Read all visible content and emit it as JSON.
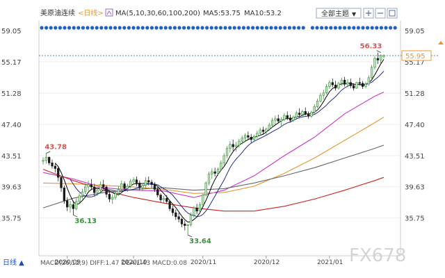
{
  "header": {
    "symbol": "美原油连续",
    "period": "<日线>",
    "ma_params": "MA(5,10,30,60,100,200)",
    "ma5": "MA5:53.75",
    "ma10": "MA10:53.2",
    "theme": "全部主题",
    "theme_arrow": "▼"
  },
  "footer": {
    "period": "日线 ▲",
    "indicator": "MACD(26,12,9) DIFF:1.47 DEA:1.43 MACD:0.08",
    "watermark": "FX678"
  },
  "colors": {
    "up": "#bfe6bf",
    "up_stroke": "#3a8f3a",
    "down": "#1a1a1a",
    "ma5": "#000000",
    "ma10": "#1e2a8a",
    "ma30": "#cc33cc",
    "ma60": "#e89530",
    "ma100": "#666666",
    "ma200": "#cc2222",
    "price_box": "#e89530",
    "ref_line": "#5b86c7"
  },
  "chart_data": {
    "type": "candlestick",
    "y_ticks": [
      "59.05",
      "55.17",
      "51.28",
      "47.40",
      "43.51",
      "39.63",
      "35.75"
    ],
    "ylim": [
      32.6,
      60.1
    ],
    "x_ticks": [
      {
        "label": "2020/09",
        "index": 8
      },
      {
        "label": "2020/10",
        "index": 30
      },
      {
        "label": "2020/11",
        "index": 53
      },
      {
        "label": "2020/12",
        "index": 74
      },
      {
        "label": "2021/01",
        "index": 95
      }
    ],
    "annotations": [
      {
        "label": "43.78",
        "index": 1,
        "value": 43.78
      },
      {
        "label": "36.13",
        "index": 10,
        "value": 36.13
      },
      {
        "label": "33.64",
        "index": 48,
        "value": 33.64
      },
      {
        "label": "56.33",
        "index": 112,
        "value": 56.33
      }
    ],
    "current_price": "55.95",
    "current_price_value": 55.95,
    "reference_value": 55.95,
    "candle_count": 114,
    "ohlc": [
      [
        42.9,
        43.3,
        42.4,
        42.9
      ],
      [
        42.9,
        43.8,
        42.5,
        43.3
      ],
      [
        43.3,
        43.4,
        42.3,
        42.6
      ],
      [
        42.6,
        43.0,
        41.9,
        42.2
      ],
      [
        42.2,
        42.5,
        41.4,
        41.9
      ],
      [
        41.9,
        42.1,
        40.3,
        40.8
      ],
      [
        40.8,
        40.9,
        39.0,
        39.5
      ],
      [
        39.5,
        39.8,
        37.5,
        37.9
      ],
      [
        37.9,
        38.3,
        36.6,
        37.1
      ],
      [
        37.1,
        37.9,
        36.4,
        37.4
      ],
      [
        37.4,
        37.9,
        36.1,
        36.9
      ],
      [
        36.9,
        38.2,
        36.7,
        37.8
      ],
      [
        37.8,
        38.8,
        37.5,
        38.5
      ],
      [
        38.5,
        39.4,
        38.1,
        39.0
      ],
      [
        39.0,
        40.1,
        38.7,
        39.6
      ],
      [
        39.6,
        40.4,
        39.1,
        39.9
      ],
      [
        39.9,
        40.6,
        39.2,
        39.6
      ],
      [
        39.6,
        40.0,
        38.5,
        38.9
      ],
      [
        38.9,
        39.6,
        38.5,
        39.2
      ],
      [
        39.2,
        40.3,
        38.9,
        39.9
      ],
      [
        39.9,
        40.5,
        39.3,
        39.6
      ],
      [
        39.6,
        39.8,
        38.3,
        38.7
      ],
      [
        38.7,
        39.1,
        37.7,
        38.1
      ],
      [
        38.1,
        38.7,
        37.5,
        38.3
      ],
      [
        38.3,
        39.1,
        38.0,
        38.8
      ],
      [
        38.8,
        39.7,
        38.5,
        39.3
      ],
      [
        39.3,
        40.4,
        39.0,
        40.0
      ],
      [
        40.0,
        40.3,
        39.1,
        39.4
      ],
      [
        39.4,
        40.0,
        39.0,
        39.7
      ],
      [
        39.7,
        40.6,
        39.4,
        40.3
      ],
      [
        40.3,
        40.8,
        39.9,
        40.5
      ],
      [
        40.5,
        40.9,
        39.7,
        40.1
      ],
      [
        40.1,
        40.4,
        39.2,
        39.5
      ],
      [
        39.5,
        40.1,
        39.1,
        39.8
      ],
      [
        39.8,
        40.8,
        39.5,
        40.4
      ],
      [
        40.4,
        40.9,
        39.8,
        40.2
      ],
      [
        40.2,
        40.5,
        39.5,
        39.9
      ],
      [
        39.9,
        40.2,
        39.0,
        39.3
      ],
      [
        39.3,
        39.6,
        38.3,
        38.6
      ],
      [
        38.6,
        38.8,
        37.7,
        38.0
      ],
      [
        38.0,
        38.5,
        37.6,
        38.2
      ],
      [
        38.2,
        38.6,
        37.5,
        37.8
      ],
      [
        37.8,
        38.0,
        36.6,
        36.9
      ],
      [
        36.9,
        37.3,
        36.0,
        36.4
      ],
      [
        36.4,
        36.8,
        35.5,
        35.9
      ],
      [
        35.9,
        36.4,
        35.2,
        35.6
      ],
      [
        35.6,
        35.8,
        34.6,
        35.0
      ],
      [
        35.0,
        35.4,
        34.2,
        34.8
      ],
      [
        34.8,
        35.0,
        33.6,
        34.9
      ],
      [
        34.9,
        36.4,
        34.7,
        36.1
      ],
      [
        36.1,
        37.2,
        35.8,
        37.0
      ],
      [
        37.0,
        37.5,
        36.2,
        36.6
      ],
      [
        36.6,
        37.7,
        36.4,
        37.4
      ],
      [
        37.4,
        38.8,
        37.2,
        38.6
      ],
      [
        38.6,
        40.3,
        38.4,
        40.1
      ],
      [
        40.1,
        41.5,
        39.8,
        41.2
      ],
      [
        41.2,
        41.9,
        40.6,
        41.5
      ],
      [
        41.5,
        42.0,
        40.9,
        41.3
      ],
      [
        41.3,
        42.0,
        41.0,
        41.8
      ],
      [
        41.8,
        42.9,
        41.6,
        42.6
      ],
      [
        42.6,
        43.8,
        42.3,
        43.5
      ],
      [
        43.5,
        44.7,
        43.2,
        44.4
      ],
      [
        44.4,
        45.3,
        43.9,
        44.9
      ],
      [
        44.9,
        45.5,
        44.1,
        44.6
      ],
      [
        44.6,
        45.2,
        44.0,
        44.8
      ],
      [
        44.8,
        45.6,
        44.5,
        45.3
      ],
      [
        45.3,
        46.0,
        44.9,
        45.7
      ],
      [
        45.7,
        46.3,
        45.2,
        46.0
      ],
      [
        46.0,
        46.5,
        45.4,
        45.8
      ],
      [
        45.8,
        46.2,
        45.1,
        45.5
      ],
      [
        45.5,
        46.1,
        45.2,
        45.9
      ],
      [
        45.9,
        46.6,
        45.6,
        46.3
      ],
      [
        46.3,
        47.0,
        46.0,
        46.7
      ],
      [
        46.7,
        47.1,
        46.1,
        46.5
      ],
      [
        46.5,
        47.0,
        46.1,
        46.8
      ],
      [
        46.8,
        47.6,
        46.6,
        47.3
      ],
      [
        47.3,
        48.2,
        47.0,
        47.9
      ],
      [
        47.9,
        48.5,
        47.4,
        48.1
      ],
      [
        48.1,
        48.6,
        47.5,
        47.8
      ],
      [
        47.8,
        48.3,
        47.2,
        48.0
      ],
      [
        48.0,
        48.8,
        47.8,
        48.5
      ],
      [
        48.5,
        49.0,
        47.9,
        48.2
      ],
      [
        48.2,
        48.6,
        47.6,
        47.9
      ],
      [
        47.9,
        48.5,
        47.7,
        48.3
      ],
      [
        48.3,
        49.1,
        48.0,
        48.8
      ],
      [
        48.8,
        49.4,
        48.3,
        48.6
      ],
      [
        48.6,
        49.2,
        48.4,
        49.0
      ],
      [
        49.0,
        49.5,
        48.5,
        48.7
      ],
      [
        48.7,
        49.0,
        48.1,
        48.4
      ],
      [
        48.4,
        49.1,
        48.2,
        48.9
      ],
      [
        48.9,
        49.9,
        48.7,
        49.6
      ],
      [
        49.6,
        50.6,
        49.4,
        50.3
      ],
      [
        50.3,
        51.3,
        50.1,
        51.0
      ],
      [
        51.0,
        51.7,
        50.5,
        51.3
      ],
      [
        51.3,
        52.4,
        51.1,
        52.1
      ],
      [
        52.1,
        52.9,
        51.8,
        52.6
      ],
      [
        52.6,
        53.1,
        52.0,
        52.3
      ],
      [
        52.3,
        52.8,
        51.6,
        51.9
      ],
      [
        51.9,
        52.7,
        51.7,
        52.5
      ],
      [
        52.5,
        53.2,
        52.2,
        52.9
      ],
      [
        52.9,
        53.3,
        52.1,
        52.4
      ],
      [
        52.4,
        53.0,
        52.0,
        52.6
      ],
      [
        52.6,
        53.1,
        51.9,
        52.2
      ],
      [
        52.2,
        52.5,
        51.6,
        51.9
      ],
      [
        51.9,
        52.7,
        51.8,
        52.6
      ],
      [
        52.6,
        53.2,
        52.2,
        52.5
      ],
      [
        52.5,
        52.8,
        51.8,
        52.1
      ],
      [
        52.1,
        52.7,
        51.9,
        52.4
      ],
      [
        52.4,
        53.5,
        52.2,
        53.2
      ],
      [
        53.2,
        54.8,
        53.0,
        54.5
      ],
      [
        54.5,
        55.9,
        54.2,
        55.6
      ],
      [
        55.6,
        56.33,
        54.9,
        55.4
      ],
      [
        55.4,
        56.1,
        55.0,
        55.95
      ],
      [
        55.95,
        56.1,
        55.6,
        55.95
      ]
    ],
    "series": [
      {
        "name": "MA30",
        "values": [
          [
            0,
            41.4
          ],
          [
            10,
            40.6
          ],
          [
            20,
            39.5
          ],
          [
            30,
            39.2
          ],
          [
            40,
            39.1
          ],
          [
            50,
            38.3
          ],
          [
            60,
            39.2
          ],
          [
            70,
            41.0
          ],
          [
            80,
            43.5
          ],
          [
            90,
            45.8
          ],
          [
            100,
            48.7
          ],
          [
            110,
            50.9
          ],
          [
            113,
            51.4
          ]
        ]
      },
      {
        "name": "MA60",
        "values": [
          [
            0,
            40.1
          ],
          [
            10,
            40.0
          ],
          [
            20,
            39.8
          ],
          [
            30,
            39.6
          ],
          [
            40,
            39.3
          ],
          [
            50,
            38.8
          ],
          [
            60,
            38.9
          ],
          [
            70,
            39.7
          ],
          [
            80,
            41.3
          ],
          [
            90,
            43.2
          ],
          [
            100,
            45.4
          ],
          [
            110,
            47.6
          ],
          [
            113,
            48.3
          ]
        ]
      },
      {
        "name": "MA100",
        "values": [
          [
            0,
            37.0
          ],
          [
            10,
            38.2
          ],
          [
            20,
            38.9
          ],
          [
            30,
            39.3
          ],
          [
            40,
            39.5
          ],
          [
            50,
            39.2
          ],
          [
            60,
            39.4
          ],
          [
            70,
            40.1
          ],
          [
            80,
            41.0
          ],
          [
            90,
            42.0
          ],
          [
            100,
            43.2
          ],
          [
            110,
            44.4
          ],
          [
            113,
            44.8
          ]
        ]
      },
      {
        "name": "MA200",
        "values": [
          [
            0,
            41.8
          ],
          [
            10,
            40.4
          ],
          [
            20,
            39.2
          ],
          [
            30,
            38.3
          ],
          [
            40,
            37.6
          ],
          [
            50,
            37.0
          ],
          [
            60,
            36.6
          ],
          [
            70,
            36.6
          ],
          [
            80,
            37.2
          ],
          [
            90,
            38.1
          ],
          [
            100,
            39.2
          ],
          [
            110,
            40.4
          ],
          [
            113,
            40.8
          ]
        ]
      }
    ]
  }
}
